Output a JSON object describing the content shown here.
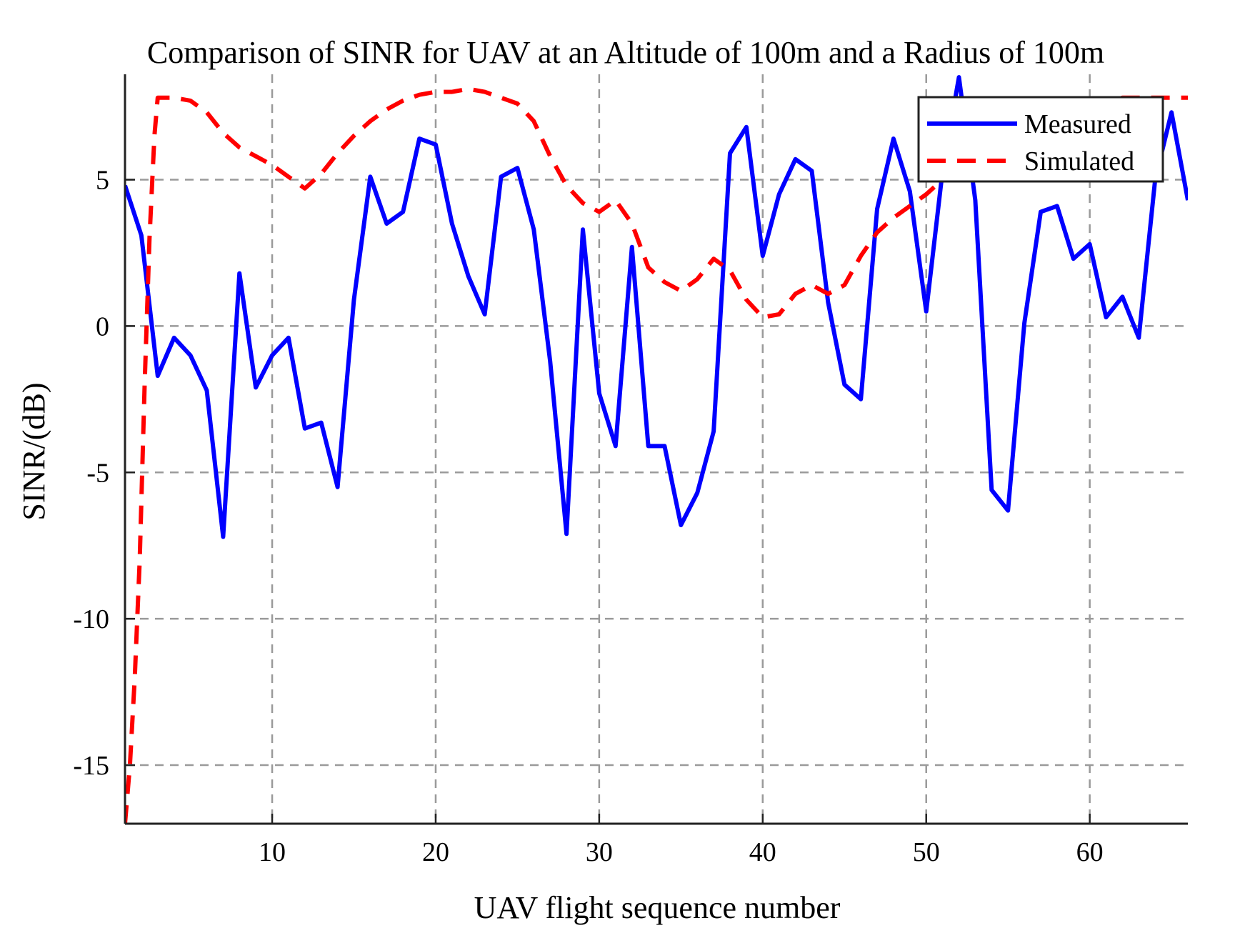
{
  "chart_data": {
    "type": "line",
    "title": "Comparison of SINR for UAV at an Altitude of 100m and a Radius of 100m",
    "xlabel": "UAV flight sequence number",
    "ylabel": "SINR/(dB)",
    "xlim": [
      1,
      66
    ],
    "ylim": [
      -17,
      8.6
    ],
    "xticks": [
      10,
      20,
      30,
      40,
      50,
      60
    ],
    "yticks": [
      -15,
      -10,
      -5,
      0,
      5
    ],
    "grid": true,
    "legend_position": "top-right",
    "series": [
      {
        "name": "Measured",
        "color": "#0000ff",
        "style": "solid",
        "x": [
          1,
          2,
          3,
          4,
          5,
          6,
          7,
          8,
          9,
          10,
          11,
          12,
          13,
          14,
          15,
          16,
          17,
          18,
          19,
          20,
          21,
          22,
          23,
          24,
          25,
          26,
          27,
          28,
          29,
          30,
          31,
          32,
          33,
          34,
          35,
          36,
          37,
          38,
          39,
          40,
          41,
          42,
          43,
          44,
          45,
          46,
          47,
          48,
          49,
          50,
          51,
          52,
          53,
          54,
          55,
          56,
          57,
          58,
          59,
          60,
          61,
          62,
          63,
          64,
          65,
          66
        ],
        "y": [
          4.8,
          3.1,
          -1.7,
          -0.4,
          -1.0,
          -2.2,
          -7.2,
          1.8,
          -2.1,
          -1.0,
          -0.4,
          -3.5,
          -3.3,
          -5.5,
          0.9,
          5.1,
          3.5,
          3.9,
          6.4,
          6.2,
          3.5,
          1.7,
          0.4,
          5.1,
          5.4,
          3.3,
          -1.2,
          -7.1,
          3.3,
          -2.3,
          -4.1,
          2.7,
          -4.1,
          -4.1,
          -6.8,
          -5.7,
          -3.6,
          5.9,
          6.8,
          2.4,
          4.5,
          5.7,
          5.3,
          0.8,
          -2.0,
          -2.5,
          4.0,
          6.4,
          4.6,
          0.5,
          5.3,
          8.5,
          4.3,
          -5.6,
          -6.3,
          0.1,
          3.9,
          4.1,
          2.3,
          2.8,
          0.3,
          1.0,
          -0.4,
          5.0,
          7.3,
          4.3
        ]
      },
      {
        "name": "Simulated",
        "color": "#ff0000",
        "style": "dashed",
        "x": [
          1,
          1.3,
          1.6,
          1.9,
          2.2,
          2.5,
          2.8,
          3,
          4,
          5,
          6,
          7,
          8,
          9,
          10,
          11,
          12,
          13,
          14,
          15,
          16,
          17,
          18,
          19,
          20,
          21,
          22,
          23,
          24,
          25,
          26,
          27,
          28,
          29,
          30,
          31,
          32,
          33,
          34,
          35,
          36,
          37,
          38,
          39,
          40,
          41,
          42,
          43,
          44,
          45,
          46,
          47,
          48,
          49,
          50,
          51,
          52,
          53,
          54,
          55,
          56,
          57,
          58,
          59,
          60,
          61,
          62,
          63,
          64,
          65,
          66
        ],
        "y": [
          -17.0,
          -15.0,
          -12.0,
          -8.0,
          -2.0,
          3.0,
          6.5,
          7.8,
          7.8,
          7.7,
          7.3,
          6.6,
          6.1,
          5.8,
          5.5,
          5.1,
          4.7,
          5.2,
          5.9,
          6.5,
          7.0,
          7.4,
          7.7,
          7.9,
          8.0,
          8.0,
          8.1,
          8.0,
          7.8,
          7.6,
          7.0,
          5.8,
          4.8,
          4.2,
          3.9,
          4.3,
          3.5,
          2.0,
          1.5,
          1.2,
          1.6,
          2.3,
          1.9,
          0.9,
          0.3,
          0.4,
          1.1,
          1.4,
          1.1,
          1.4,
          2.4,
          3.2,
          3.7,
          4.1,
          4.5,
          5.0,
          5.5,
          6.3,
          6.9,
          7.1,
          7.0,
          6.9,
          7.1,
          7.3,
          7.6,
          7.7,
          7.8,
          7.8,
          7.8,
          7.8,
          7.8
        ]
      }
    ]
  }
}
